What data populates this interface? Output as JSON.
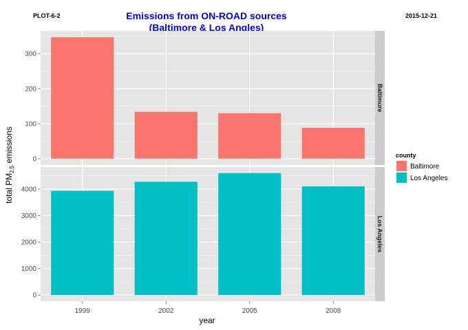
{
  "header": {
    "left_tag": "PLOT-6-2",
    "right_tag": "2015-12-21"
  },
  "chart_data": {
    "type": "bar",
    "title_line1": "Emissions from ON-ROAD sources",
    "title_line2": "(Baltimore & Los Angles)",
    "xlabel": "year",
    "ylabel_main": "total PM",
    "ylabel_sub": "2.5",
    "ylabel_tail": " emissions",
    "categories": [
      "1999",
      "2002",
      "2005",
      "2008"
    ],
    "facets": [
      {
        "name": "Baltimore",
        "color": "#F8766D",
        "values": [
          347,
          134,
          130,
          88
        ],
        "ylim": [
          -18,
          365
        ],
        "yticks": [
          0,
          100,
          200,
          300
        ]
      },
      {
        "name": "Los Angeles",
        "color": "#00BFC4",
        "values": [
          3931,
          4274,
          4601,
          4101
        ],
        "ylim": [
          -230,
          4830
        ],
        "yticks": [
          0,
          1000,
          2000,
          3000,
          4000
        ]
      }
    ],
    "legend": {
      "title": "county",
      "placement": "right",
      "items": [
        {
          "label": "Baltimore",
          "color": "#F8766D"
        },
        {
          "label": "Los Angeles",
          "color": "#00BFC4"
        }
      ]
    },
    "panel_background": "#E5E5E5",
    "strip_background": "#CCCCCC",
    "grid": true
  }
}
